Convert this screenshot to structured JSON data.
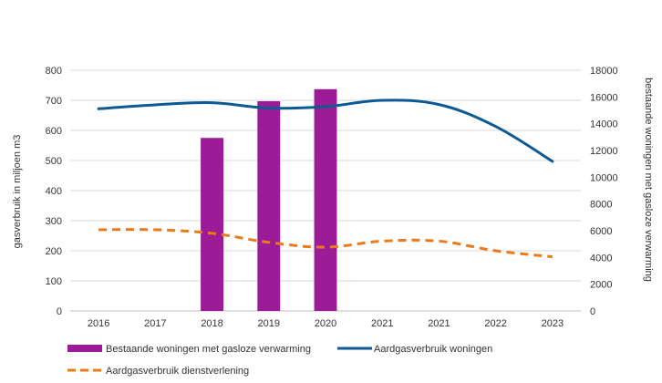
{
  "chart_data": {
    "type": "bar",
    "categories": [
      "2016",
      "2017",
      "2018",
      "2019",
      "2020",
      "2021",
      "2021",
      "2022",
      "2023"
    ],
    "title": "",
    "ylabel": "gasverbruik in miljoen m3",
    "y2label": "bestaande woningen met gasloze verwarming",
    "ylim": [
      0,
      800
    ],
    "y2lim": [
      0,
      18000
    ],
    "yticks": [
      "0",
      "100",
      "200",
      "300",
      "400",
      "500",
      "600",
      "700",
      "800"
    ],
    "y2ticks": [
      "0",
      "2000",
      "4000",
      "6000",
      "8000",
      "10000",
      "12000",
      "14000",
      "16000",
      "18000"
    ],
    "grid": true,
    "legend_position": "bottom",
    "series": [
      {
        "name": "Bestaande woningen met gasloze verwarming",
        "type": "bar",
        "axis": "left",
        "color": "#9c1b96",
        "values": [
          null,
          null,
          575,
          697,
          737,
          null,
          null,
          null,
          null
        ]
      },
      {
        "name": "Aardgasverbruik woningen",
        "type": "line",
        "axis": "left",
        "color": "#0b5a94",
        "style": "solid",
        "values": [
          672,
          685,
          692,
          674,
          679,
          700,
          686,
          613,
          497
        ]
      },
      {
        "name": "Aardgasverbruik dienstverlening",
        "type": "line",
        "axis": "left",
        "color": "#ea7a1a",
        "style": "dashed",
        "values": [
          270,
          270,
          258,
          228,
          212,
          232,
          232,
          200,
          180
        ]
      }
    ]
  }
}
